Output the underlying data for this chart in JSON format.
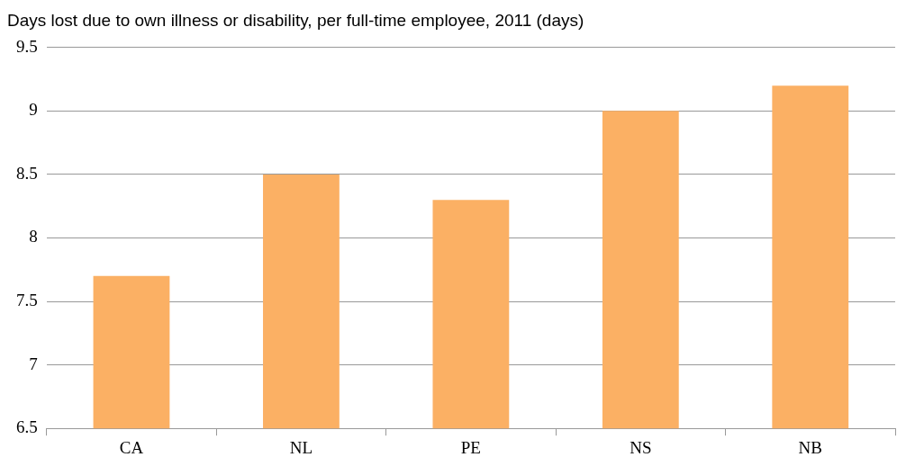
{
  "chart_data": {
    "type": "bar",
    "title": "Days lost due to own illness or disability, per full-time employee, 2011 (days)",
    "categories": [
      "CA",
      "NL",
      "PE",
      "NS",
      "NB"
    ],
    "values": [
      7.7,
      8.5,
      8.3,
      9.0,
      9.2
    ],
    "color": "#fbb064",
    "ylim": [
      6.5,
      9.5
    ],
    "yticks": [
      6.5,
      7,
      7.5,
      8,
      8.5,
      9,
      9.5
    ],
    "grid": "y"
  }
}
